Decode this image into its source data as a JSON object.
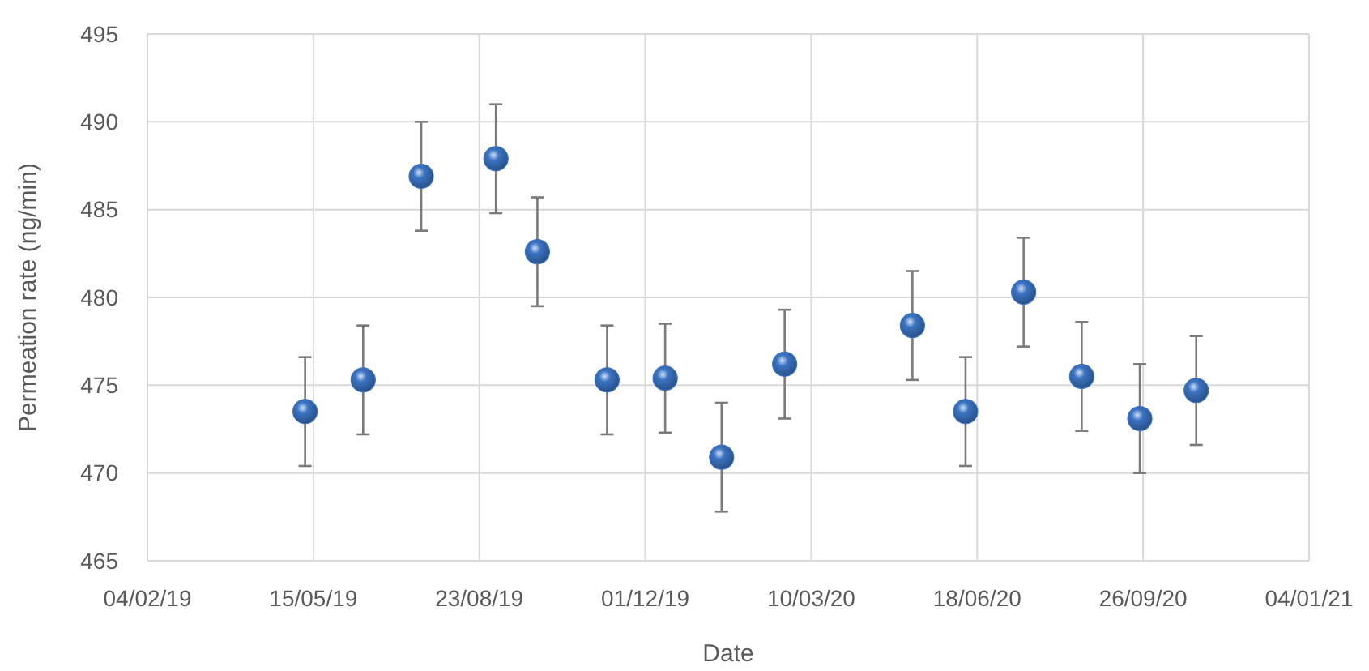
{
  "chart_data": {
    "type": "scatter",
    "xlabel": "Date",
    "ylabel": "Permeation rate (ng/min)",
    "x": [
      "2019-05-10",
      "2019-06-14",
      "2019-07-19",
      "2019-09-02",
      "2019-09-27",
      "2019-11-08",
      "2019-12-13",
      "2020-01-16",
      "2020-02-23",
      "2020-05-10",
      "2020-06-11",
      "2020-07-16",
      "2020-08-20",
      "2020-09-24",
      "2020-10-28"
    ],
    "series": [
      {
        "color": "#3b73c2",
        "values": [
          473.5,
          475.3,
          486.9,
          487.9,
          482.6,
          475.3,
          475.4,
          470.9,
          476.2,
          478.4,
          473.5,
          480.3,
          475.5,
          473.1,
          474.7
        ],
        "errors": [
          3.1,
          3.1,
          3.1,
          3.1,
          3.1,
          3.1,
          3.1,
          3.1,
          3.1,
          3.1,
          3.1,
          3.1,
          3.1,
          3.1,
          3.1
        ]
      }
    ],
    "xlim": [
      "2019-02-04",
      "2021-01-04"
    ],
    "xticks": [
      {
        "value": "2019-02-04",
        "label": "04/02/19"
      },
      {
        "value": "2019-05-15",
        "label": "15/05/19"
      },
      {
        "value": "2019-08-23",
        "label": "23/08/19"
      },
      {
        "value": "2019-12-01",
        "label": "01/12/19"
      },
      {
        "value": "2020-03-10",
        "label": "10/03/20"
      },
      {
        "value": "2020-06-18",
        "label": "18/06/20"
      },
      {
        "value": "2020-09-26",
        "label": "26/09/20"
      },
      {
        "value": "2021-01-04",
        "label": "04/01/21"
      }
    ],
    "ylim": [
      465,
      495
    ],
    "yticks": [
      465,
      470,
      475,
      480,
      485,
      490,
      495
    ],
    "grid": true,
    "marker": "circle"
  }
}
